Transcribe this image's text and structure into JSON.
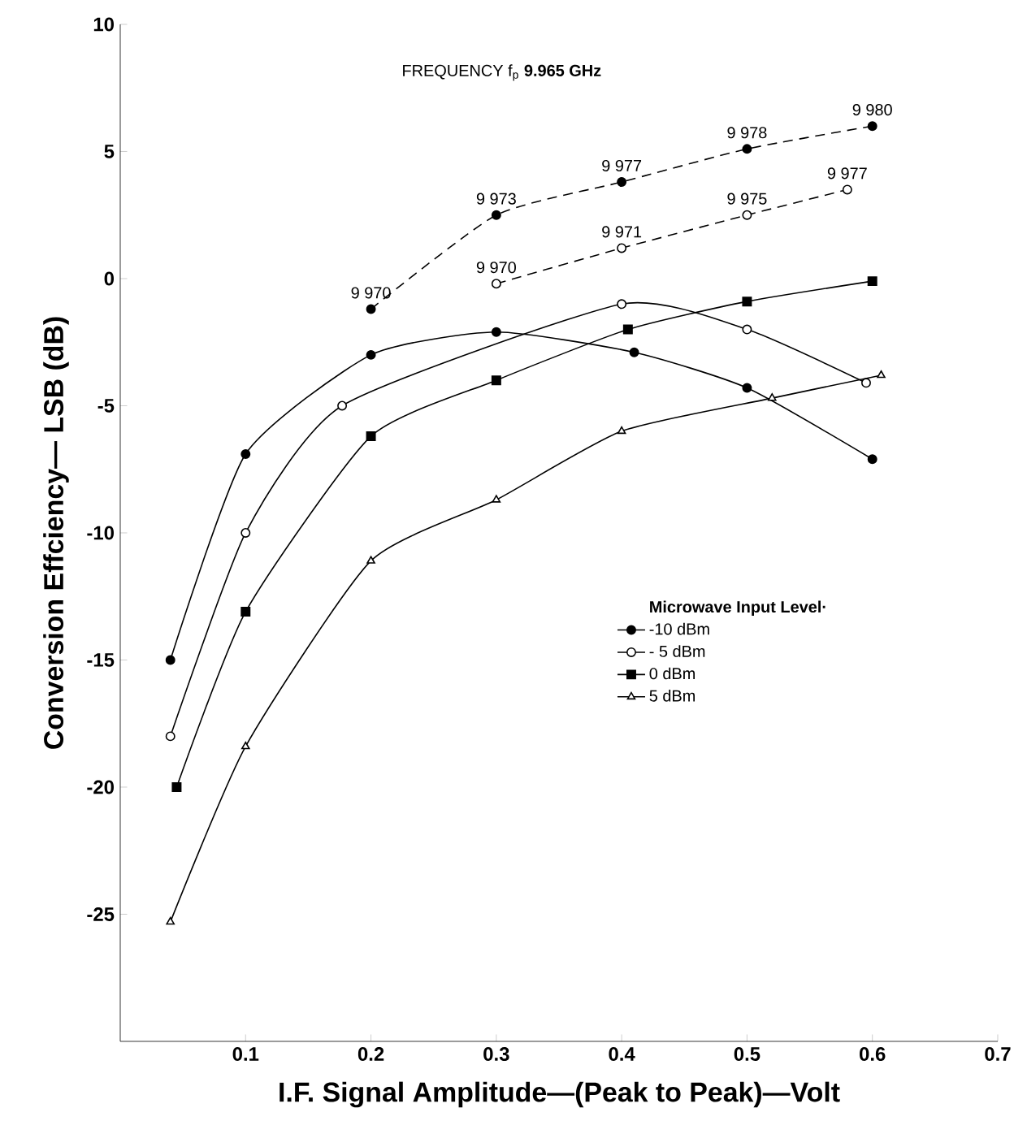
{
  "chart_data": {
    "type": "line",
    "title": "FREQUENCY  f$_{p}$  **9.965 GHz**",
    "xlabel": "I.F. Signal Amplitude—(Peak to Peak)—Volt",
    "ylabel": "Conversion Effciency— LSB (dB)",
    "legend_title": "Microwave Input Level·",
    "xlim": [
      0,
      0.7
    ],
    "ylim": [
      -30,
      10
    ],
    "xticks": [
      0.1,
      0.2,
      0.3,
      0.4,
      0.5,
      0.6,
      0.7
    ],
    "yticks": [
      -25,
      -20,
      -15,
      -10,
      -5,
      0,
      5,
      10
    ],
    "grid": false,
    "legend": "right",
    "series": [
      {
        "name": "-10 dBm",
        "color": "#000000",
        "marker": "circle",
        "line_style": "solid",
        "x": [
          0.04,
          0.1,
          0.2,
          0.3,
          0.41,
          0.5,
          0.6
        ],
        "values": [
          -15,
          -6.9,
          -3,
          -2.1,
          -2.9,
          -4.3,
          -7.1
        ]
      },
      {
        "name": "- 5 dBm",
        "color": "#000000",
        "marker": "circle",
        "line_style": "solid",
        "x": [
          0.04,
          0.1,
          0.177,
          0.4,
          0.5,
          0.595
        ],
        "values": [
          -18,
          -10,
          -5,
          -1,
          -2,
          -4.1
        ]
      },
      {
        "name": "0 dBm",
        "color": "#000000",
        "marker": "square",
        "line_style": "solid",
        "x": [
          0.045,
          0.1,
          0.2,
          0.3,
          0.405,
          0.5,
          0.6
        ],
        "values": [
          -20,
          -13.1,
          -6.2,
          -4,
          -2,
          -0.9,
          -0.1
        ]
      },
      {
        "name": "5 dBm",
        "color": "#000000",
        "marker": "triangle",
        "line_style": "solid",
        "x": [
          0.04,
          0.1,
          0.2,
          0.3,
          0.4,
          0.52,
          0.607
        ],
        "values": [
          -25.3,
          -18.4,
          -11.1,
          -8.7,
          -6,
          -4.7,
          -3.8
        ]
      },
      {
        "color": "#000000",
        "marker": "circle",
        "line_style": "dashed",
        "x": [
          0.2,
          0.3,
          0.4,
          0.5,
          0.6
        ],
        "values": [
          -1.2,
          2.5,
          3.8,
          5.1,
          6
        ]
      },
      {
        "color": "#000000",
        "marker": "circle",
        "line_style": "dashed",
        "x": [
          0.3,
          0.4,
          0.5,
          0.58
        ],
        "values": [
          -0.2,
          1.2,
          2.5,
          3.5
        ]
      }
    ],
    "annotations": [
      {
        "text": "9 970",
        "x": 0.2,
        "y": -1.2
      },
      {
        "text": "9 973",
        "x": 0.3,
        "y": 2.5
      },
      {
        "text": "9 977",
        "x": 0.4,
        "y": 3.8
      },
      {
        "text": "9 978",
        "x": 0.5,
        "y": 5.1
      },
      {
        "text": "9 980",
        "x": 0.6,
        "y": 6
      },
      {
        "text": "9 970",
        "x": 0.3,
        "y": -0.2
      },
      {
        "text": "9 971",
        "x": 0.4,
        "y": 1.2
      },
      {
        "text": "9 975",
        "x": 0.5,
        "y": 2.5
      },
      {
        "text": "9 977",
        "x": 0.58,
        "y": 3.5
      }
    ]
  }
}
